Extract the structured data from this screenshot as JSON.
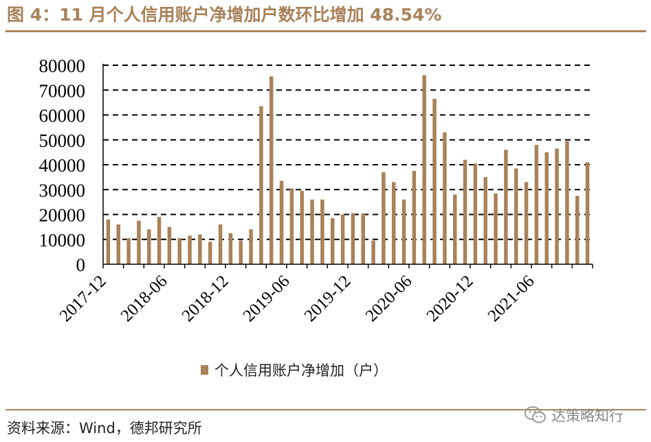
{
  "title": "图 4：11 月个人信用账户净增加户数环比增加 48.54%",
  "source": "资料来源：Wind，德邦研究所",
  "watermark": "达策略知行",
  "colors": {
    "bar": "#A9825A",
    "title": "#A9825A",
    "grid": "#000000"
  },
  "chart_data": {
    "type": "bar",
    "x": [
      "2017-12",
      "2018-01",
      "2018-02",
      "2018-03",
      "2018-04",
      "2018-05",
      "2018-06",
      "2018-07",
      "2018-08",
      "2018-09",
      "2018-10",
      "2018-11",
      "2018-12",
      "2019-01",
      "2019-02",
      "2019-03",
      "2019-04",
      "2019-05",
      "2019-06",
      "2019-07",
      "2019-08",
      "2019-09",
      "2019-10",
      "2019-11",
      "2019-12",
      "2020-01",
      "2020-02",
      "2020-03",
      "2020-04",
      "2020-05",
      "2020-06",
      "2020-07",
      "2020-08",
      "2020-09",
      "2020-10",
      "2020-11",
      "2020-12",
      "2021-01",
      "2021-02",
      "2021-03",
      "2021-04",
      "2021-05",
      "2021-06",
      "2021-07",
      "2021-08",
      "2021-09",
      "2021-10",
      "2021-11"
    ],
    "tick_labels": [
      "2017-12",
      "2018-06",
      "2018-12",
      "2019-06",
      "2019-12",
      "2020-06",
      "2020-12",
      "2021-06"
    ],
    "series": [
      {
        "name": "个人信用账户净增加（户）",
        "values": [
          18000,
          16000,
          10500,
          17500,
          14000,
          19000,
          15000,
          10500,
          11500,
          12000,
          9000,
          16000,
          12500,
          9500,
          14000,
          63500,
          75500,
          33500,
          30500,
          29500,
          26000,
          26000,
          18500,
          20000,
          20500,
          20500,
          9500,
          37000,
          33000,
          26000,
          37500,
          76000,
          66500,
          53000,
          28000,
          42000,
          40500,
          35000,
          28500,
          46000,
          38500,
          33000,
          48000,
          45000,
          46500,
          49500,
          27500,
          41000
        ]
      }
    ],
    "ylim": [
      0,
      80000
    ],
    "yticks": [
      0,
      10000,
      20000,
      30000,
      40000,
      50000,
      60000,
      70000,
      80000
    ],
    "grid": "horizontal-dashed",
    "legend": "bottom"
  }
}
